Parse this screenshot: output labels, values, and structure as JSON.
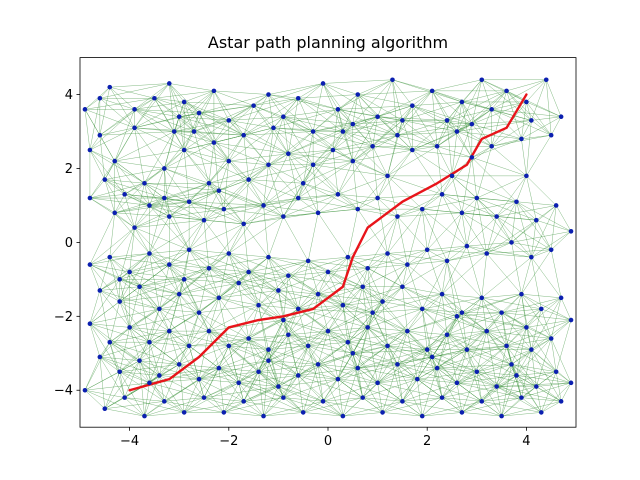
{
  "chart_data": {
    "type": "scatter",
    "title": "Astar path planning algorithm",
    "xlabel": "",
    "ylabel": "",
    "xlim": [
      -5,
      5
    ],
    "ylim": [
      -5,
      5
    ],
    "x_ticks": [
      -4,
      -2,
      0,
      2,
      4
    ],
    "y_ticks": [
      -4,
      -2,
      0,
      2,
      4
    ],
    "x_tick_labels": [
      "−4",
      "−2",
      "0",
      "2",
      "4"
    ],
    "y_tick_labels": [
      "−4",
      "−2",
      "0",
      "2",
      "4"
    ],
    "grid": false,
    "colors": {
      "nodes": "#0b1fb0",
      "edges": "#2e8b2e",
      "path": "#e8141a"
    },
    "nodes": [
      [
        -4.9,
        3.6
      ],
      [
        -4.6,
        3.9
      ],
      [
        -4.4,
        4.2
      ],
      [
        -4.6,
        2.9
      ],
      [
        -4.8,
        2.5
      ],
      [
        -4.3,
        2.2
      ],
      [
        -3.9,
        3.6
      ],
      [
        -3.5,
        3.9
      ],
      [
        -3.2,
        4.3
      ],
      [
        -3.0,
        3.4
      ],
      [
        -2.7,
        3.0
      ],
      [
        -2.6,
        3.5
      ],
      [
        -2.9,
        3.8
      ],
      [
        -2.3,
        4.1
      ],
      [
        -2.0,
        3.3
      ],
      [
        -1.7,
        2.9
      ],
      [
        -1.5,
        3.7
      ],
      [
        -1.2,
        4.0
      ],
      [
        -0.9,
        3.4
      ],
      [
        -0.6,
        3.9
      ],
      [
        -0.3,
        3.0
      ],
      [
        -0.1,
        4.3
      ],
      [
        0.2,
        3.6
      ],
      [
        0.5,
        3.2
      ],
      [
        0.6,
        4.0
      ],
      [
        1.0,
        3.4
      ],
      [
        1.3,
        4.4
      ],
      [
        1.7,
        3.7
      ],
      [
        2.1,
        4.1
      ],
      [
        2.4,
        3.3
      ],
      [
        2.7,
        3.8
      ],
      [
        3.1,
        4.4
      ],
      [
        3.3,
        3.6
      ],
      [
        3.6,
        4.1
      ],
      [
        4.0,
        3.8
      ],
      [
        4.4,
        4.4
      ],
      [
        4.7,
        3.4
      ],
      [
        4.5,
        2.9
      ],
      [
        3.9,
        2.8
      ],
      [
        3.3,
        2.6
      ],
      [
        2.9,
        2.3
      ],
      [
        2.6,
        3.0
      ],
      [
        2.2,
        2.6
      ],
      [
        1.7,
        2.5
      ],
      [
        1.4,
        2.9
      ],
      [
        0.9,
        2.6
      ],
      [
        0.5,
        2.2
      ],
      [
        0.1,
        2.5
      ],
      [
        -0.3,
        2.1
      ],
      [
        -0.8,
        2.4
      ],
      [
        -1.2,
        2.1
      ],
      [
        -1.6,
        1.7
      ],
      [
        -2.0,
        2.2
      ],
      [
        -2.4,
        1.6
      ],
      [
        -2.9,
        2.5
      ],
      [
        -3.3,
        2.0
      ],
      [
        -3.7,
        1.6
      ],
      [
        -4.1,
        1.3
      ],
      [
        -4.5,
        1.7
      ],
      [
        -4.8,
        1.2
      ],
      [
        -4.3,
        0.8
      ],
      [
        -3.9,
        0.4
      ],
      [
        -3.6,
        1.0
      ],
      [
        -3.2,
        0.7
      ],
      [
        -2.8,
        1.1
      ],
      [
        -2.5,
        0.6
      ],
      [
        -2.1,
        0.9
      ],
      [
        -1.7,
        0.5
      ],
      [
        -1.3,
        1.0
      ],
      [
        -0.9,
        0.7
      ],
      [
        -0.6,
        1.2
      ],
      [
        -0.2,
        0.8
      ],
      [
        0.2,
        1.3
      ],
      [
        0.6,
        0.9
      ],
      [
        1.0,
        1.2
      ],
      [
        1.4,
        0.7
      ],
      [
        1.9,
        0.9
      ],
      [
        2.3,
        1.3
      ],
      [
        2.7,
        0.8
      ],
      [
        3.0,
        1.2
      ],
      [
        3.4,
        0.7
      ],
      [
        3.8,
        1.1
      ],
      [
        4.2,
        0.6
      ],
      [
        4.6,
        1.0
      ],
      [
        4.9,
        0.3
      ],
      [
        4.5,
        -0.2
      ],
      [
        4.1,
        -0.4
      ],
      [
        3.7,
        0.0
      ],
      [
        3.2,
        -0.3
      ],
      [
        2.8,
        -0.1
      ],
      [
        2.4,
        -0.5
      ],
      [
        2.0,
        -0.2
      ],
      [
        1.6,
        -0.6
      ],
      [
        1.2,
        -0.3
      ],
      [
        0.8,
        -0.7
      ],
      [
        0.4,
        -0.4
      ],
      [
        0.0,
        -0.8
      ],
      [
        -0.4,
        -0.5
      ],
      [
        -0.8,
        -0.9
      ],
      [
        -1.2,
        -0.4
      ],
      [
        -1.6,
        -0.8
      ],
      [
        -2.0,
        -0.3
      ],
      [
        -2.4,
        -0.7
      ],
      [
        -2.8,
        -0.2
      ],
      [
        -3.2,
        -0.6
      ],
      [
        -3.6,
        -0.3
      ],
      [
        -4.0,
        -0.8
      ],
      [
        -4.4,
        -0.4
      ],
      [
        -4.8,
        -0.6
      ],
      [
        -4.6,
        -1.3
      ],
      [
        -4.2,
        -1.6
      ],
      [
        -3.8,
        -1.2
      ],
      [
        -3.4,
        -1.8
      ],
      [
        -3.0,
        -1.4
      ],
      [
        -2.6,
        -1.9
      ],
      [
        -2.2,
        -1.5
      ],
      [
        -1.8,
        -1.1
      ],
      [
        -1.4,
        -1.7
      ],
      [
        -1.0,
        -1.3
      ],
      [
        -0.6,
        -1.8
      ],
      [
        -0.2,
        -1.4
      ],
      [
        0.3,
        -1.7
      ],
      [
        0.7,
        -1.2
      ],
      [
        1.1,
        -1.6
      ],
      [
        1.5,
        -1.2
      ],
      [
        1.9,
        -1.8
      ],
      [
        2.3,
        -1.4
      ],
      [
        2.7,
        -1.9
      ],
      [
        3.1,
        -1.5
      ],
      [
        3.5,
        -1.9
      ],
      [
        3.9,
        -1.4
      ],
      [
        4.3,
        -1.8
      ],
      [
        4.7,
        -1.5
      ],
      [
        4.9,
        -2.1
      ],
      [
        4.5,
        -2.6
      ],
      [
        4.0,
        -2.3
      ],
      [
        3.6,
        -2.8
      ],
      [
        3.2,
        -2.4
      ],
      [
        2.8,
        -2.9
      ],
      [
        2.4,
        -2.5
      ],
      [
        2.0,
        -2.9
      ],
      [
        1.6,
        -2.4
      ],
      [
        1.2,
        -2.8
      ],
      [
        0.8,
        -2.3
      ],
      [
        0.4,
        -2.7
      ],
      [
        0.0,
        -2.4
      ],
      [
        -0.4,
        -2.8
      ],
      [
        -0.8,
        -2.5
      ],
      [
        -1.2,
        -2.9
      ],
      [
        -1.6,
        -2.6
      ],
      [
        -2.0,
        -2.8
      ],
      [
        -2.4,
        -2.4
      ],
      [
        -2.8,
        -2.8
      ],
      [
        -3.2,
        -2.4
      ],
      [
        -3.6,
        -2.7
      ],
      [
        -4.0,
        -2.3
      ],
      [
        -4.4,
        -2.7
      ],
      [
        -4.8,
        -2.2
      ],
      [
        -4.6,
        -3.1
      ],
      [
        -4.2,
        -3.5
      ],
      [
        -3.8,
        -3.2
      ],
      [
        -3.4,
        -3.6
      ],
      [
        -3.0,
        -3.3
      ],
      [
        -2.6,
        -3.7
      ],
      [
        -2.2,
        -3.4
      ],
      [
        -1.8,
        -3.8
      ],
      [
        -1.4,
        -3.5
      ],
      [
        -1.0,
        -3.9
      ],
      [
        -0.6,
        -3.6
      ],
      [
        -0.2,
        -3.3
      ],
      [
        0.2,
        -3.7
      ],
      [
        0.6,
        -3.4
      ],
      [
        1.0,
        -3.8
      ],
      [
        1.4,
        -3.3
      ],
      [
        1.8,
        -3.7
      ],
      [
        2.2,
        -3.4
      ],
      [
        2.6,
        -3.8
      ],
      [
        3.0,
        -3.5
      ],
      [
        3.4,
        -3.9
      ],
      [
        3.8,
        -3.6
      ],
      [
        4.2,
        -3.9
      ],
      [
        4.6,
        -3.5
      ],
      [
        4.9,
        -3.8
      ],
      [
        4.7,
        -4.3
      ],
      [
        4.3,
        -4.6
      ],
      [
        3.9,
        -4.2
      ],
      [
        3.5,
        -4.7
      ],
      [
        3.1,
        -4.3
      ],
      [
        2.7,
        -4.6
      ],
      [
        2.3,
        -4.2
      ],
      [
        1.9,
        -4.7
      ],
      [
        1.5,
        -4.3
      ],
      [
        1.1,
        -4.6
      ],
      [
        0.7,
        -4.2
      ],
      [
        0.3,
        -4.7
      ],
      [
        -0.1,
        -4.3
      ],
      [
        -0.5,
        -4.6
      ],
      [
        -0.9,
        -4.2
      ],
      [
        -1.3,
        -4.7
      ],
      [
        -1.7,
        -4.3
      ],
      [
        -2.1,
        -4.6
      ],
      [
        -2.5,
        -4.2
      ],
      [
        -2.9,
        -4.6
      ],
      [
        -3.3,
        -4.3
      ],
      [
        -3.7,
        -4.7
      ],
      [
        -4.1,
        -4.2
      ],
      [
        -4.5,
        -4.5
      ],
      [
        -4.9,
        -4.0
      ],
      [
        -3.9,
        3.1
      ],
      [
        -3.1,
        3.0
      ],
      [
        -2.3,
        2.7
      ],
      [
        -1.1,
        3.1
      ],
      [
        0.3,
        3.0
      ],
      [
        1.5,
        3.3
      ],
      [
        2.9,
        3.2
      ],
      [
        4.1,
        3.3
      ],
      [
        -3.3,
        1.2
      ],
      [
        -2.2,
        1.4
      ],
      [
        -0.5,
        1.6
      ],
      [
        1.2,
        1.8
      ],
      [
        2.5,
        1.8
      ],
      [
        4.0,
        1.8
      ],
      [
        -4.2,
        -1.0
      ],
      [
        -2.9,
        -1.0
      ],
      [
        -0.9,
        -2.1
      ],
      [
        0.9,
        -1.9
      ],
      [
        2.6,
        -2.0
      ],
      [
        4.1,
        -2.9
      ],
      [
        -3.6,
        -3.8
      ],
      [
        -1.2,
        -3.2
      ],
      [
        0.5,
        -3.0
      ],
      [
        2.1,
        -3.1
      ],
      [
        3.7,
        -3.3
      ]
    ],
    "path": [
      [
        -4.0,
        -4.0
      ],
      [
        -3.2,
        -3.7
      ],
      [
        -2.6,
        -3.1
      ],
      [
        -2.0,
        -2.3
      ],
      [
        -1.4,
        -2.1
      ],
      [
        -0.9,
        -2.0
      ],
      [
        -0.3,
        -1.8
      ],
      [
        0.3,
        -1.2
      ],
      [
        0.5,
        -0.4
      ],
      [
        0.8,
        0.4
      ],
      [
        1.5,
        1.1
      ],
      [
        2.2,
        1.6
      ],
      [
        2.8,
        2.1
      ],
      [
        3.1,
        2.8
      ],
      [
        3.6,
        3.1
      ],
      [
        4.0,
        4.0
      ]
    ]
  }
}
